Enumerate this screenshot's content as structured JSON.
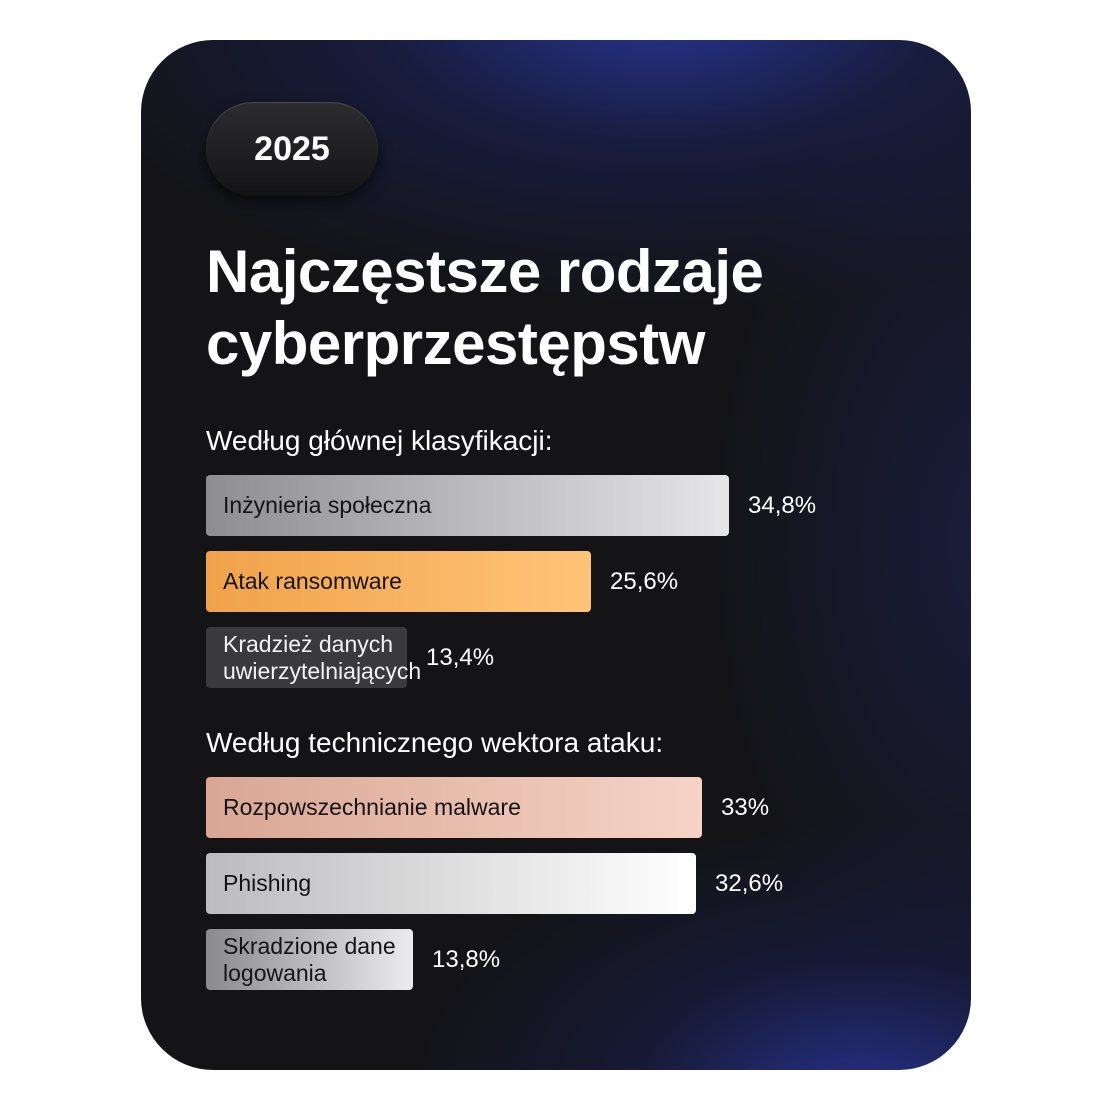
{
  "year": "2025",
  "title_line1": "Najczęstsze rodzaje",
  "title_line2": "cyberprzestępstw",
  "chart_data": [
    {
      "type": "bar",
      "title": "Według głównej klasyfikacji:",
      "categories": [
        "Inżynieria społeczna",
        "Atak ransomware",
        "Kradzież danych uwierzytelniających"
      ],
      "values": [
        34.8,
        25.6,
        13.4
      ],
      "value_labels": [
        "34,8%",
        "25,6%",
        "13,4%"
      ],
      "colors": [
        [
          "#8e8e90",
          "#e6e6e8"
        ],
        [
          "#f0a24a",
          "#ffc478"
        ],
        [
          "#3a3a3c",
          "#3a3a3c"
        ]
      ]
    },
    {
      "type": "bar",
      "title": "Według technicznego wektora ataku:",
      "categories": [
        "Rozpowszechnianie malware",
        "Phishing",
        "Skradzione dane logowania"
      ],
      "values": [
        33,
        32.6,
        13.8
      ],
      "value_labels": [
        "33%",
        "32,6%",
        "13,8%"
      ],
      "colors": [
        [
          "#d9a694",
          "#f6d3c6"
        ],
        [
          "#bcbcbe",
          "#ffffff"
        ],
        [
          "#8a8a8c",
          "#ececee"
        ]
      ]
    }
  ]
}
